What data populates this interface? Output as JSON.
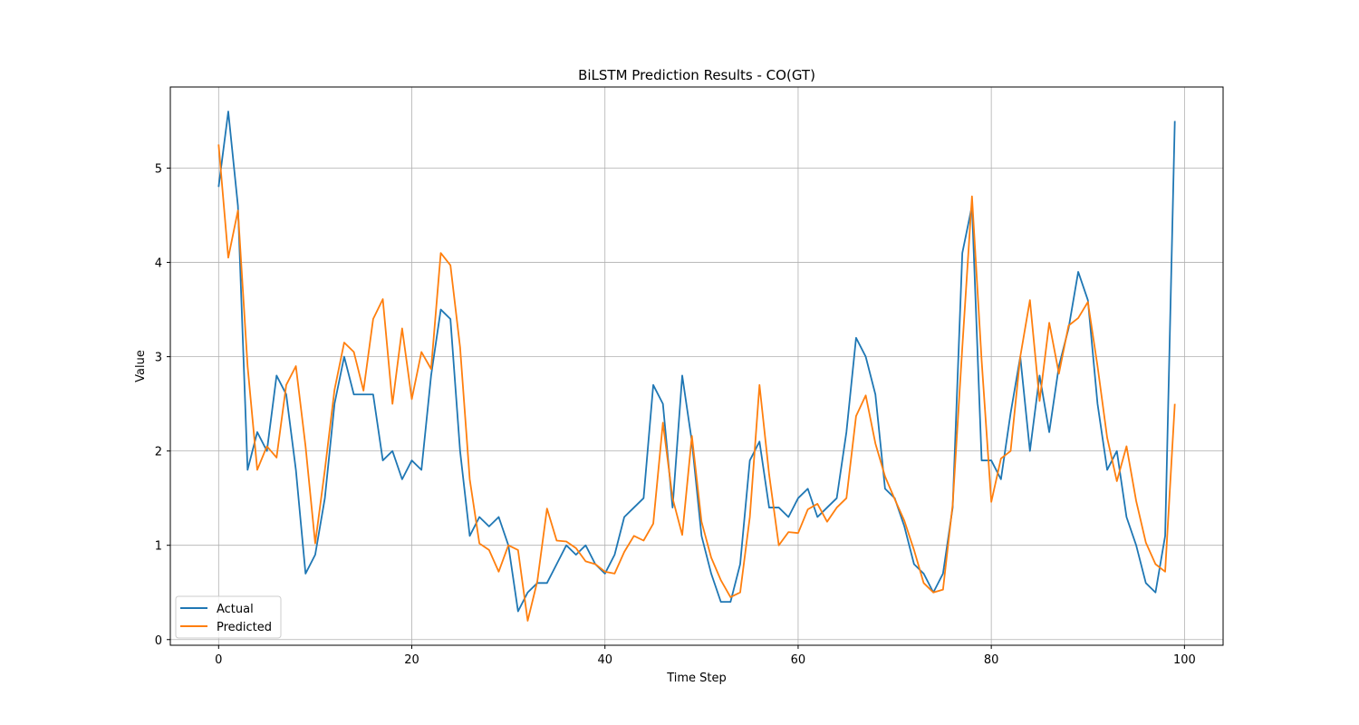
{
  "chart_data": {
    "type": "line",
    "title": "BiLSTM Prediction Results - CO(GT)",
    "xlabel": "Time Step",
    "ylabel": "Value",
    "xlim": [
      -5,
      104
    ],
    "ylim": [
      -0.06,
      5.86
    ],
    "xticks": [
      0,
      20,
      40,
      60,
      80,
      100
    ],
    "yticks": [
      0,
      1,
      2,
      3,
      4,
      5
    ],
    "grid": true,
    "legend_position": "lower-left",
    "colors": {
      "Actual": "#1f77b4",
      "Predicted": "#ff7f0e"
    },
    "series": [
      {
        "name": "Actual",
        "values": [
          4.8,
          5.6,
          4.6,
          1.8,
          2.2,
          2.0,
          2.8,
          2.6,
          1.8,
          0.7,
          0.9,
          1.5,
          2.5,
          3.0,
          2.6,
          2.6,
          2.6,
          1.9,
          2.0,
          1.7,
          1.9,
          1.8,
          2.8,
          3.5,
          3.4,
          2.0,
          1.1,
          1.3,
          1.2,
          1.3,
          1.0,
          0.3,
          0.5,
          0.6,
          0.6,
          0.8,
          1.0,
          0.9,
          1.0,
          0.8,
          0.7,
          0.9,
          1.3,
          1.4,
          1.5,
          2.7,
          2.5,
          1.4,
          2.8,
          2.1,
          1.1,
          0.7,
          0.4,
          0.4,
          0.8,
          1.9,
          2.1,
          1.4,
          1.4,
          1.3,
          1.5,
          1.6,
          1.3,
          1.4,
          1.5,
          2.2,
          3.2,
          3.0,
          2.6,
          1.6,
          1.5,
          1.2,
          0.8,
          0.7,
          0.5,
          0.7,
          1.4,
          4.1,
          4.6,
          1.9,
          1.9,
          1.7,
          2.4,
          3.0,
          2.0,
          2.8,
          2.2,
          2.9,
          3.3,
          3.9,
          3.6,
          2.5,
          1.8,
          2.0,
          1.3,
          1.0,
          0.6,
          0.5,
          1.1,
          5.5
        ]
      },
      {
        "name": "Predicted",
        "values": [
          5.25,
          4.05,
          4.55,
          2.9,
          1.8,
          2.05,
          1.93,
          2.7,
          2.9,
          2.05,
          1.02,
          1.8,
          2.65,
          3.15,
          3.05,
          2.64,
          3.4,
          3.61,
          2.5,
          3.3,
          2.55,
          3.05,
          2.87,
          4.1,
          3.97,
          3.1,
          1.7,
          1.02,
          0.95,
          0.72,
          1.0,
          0.95,
          0.2,
          0.62,
          1.39,
          1.05,
          1.04,
          0.97,
          0.83,
          0.8,
          0.72,
          0.7,
          0.93,
          1.1,
          1.05,
          1.23,
          2.3,
          1.5,
          1.11,
          2.16,
          1.25,
          0.87,
          0.63,
          0.45,
          0.5,
          1.3,
          2.7,
          1.75,
          1.0,
          1.14,
          1.13,
          1.38,
          1.44,
          1.25,
          1.4,
          1.5,
          2.37,
          2.59,
          2.08,
          1.73,
          1.49,
          1.26,
          0.95,
          0.6,
          0.5,
          0.53,
          1.43,
          3.1,
          4.7,
          2.96,
          1.46,
          1.92,
          2.0,
          3.0,
          3.6,
          2.53,
          3.36,
          2.82,
          3.33,
          3.41,
          3.58,
          2.9,
          2.14,
          1.68,
          2.05,
          1.47,
          1.03,
          0.8,
          0.72,
          2.5
        ]
      }
    ]
  }
}
